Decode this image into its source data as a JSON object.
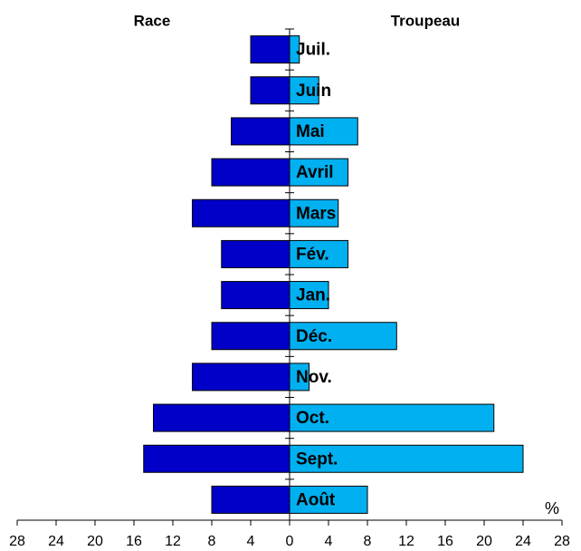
{
  "chart_data": {
    "type": "butterfly",
    "left_title": "Race",
    "right_title": "Troupeau",
    "unit_label": "%",
    "categories": [
      "Juil.",
      "Juin",
      "Mai",
      "Avril",
      "Mars",
      "Fév.",
      "Jan.",
      "Déc.",
      "Nov.",
      "Oct.",
      "Sept.",
      "Août"
    ],
    "series": [
      {
        "name": "Race",
        "color": "#0000c8",
        "values": [
          -4,
          -4,
          -6,
          -8,
          -10,
          -7,
          -7,
          -8,
          -10,
          -14,
          -15,
          -8
        ]
      },
      {
        "name": "Troupeau",
        "color": "#00b0f0",
        "values": [
          1,
          3,
          7,
          6,
          5,
          6,
          4,
          11,
          2,
          21,
          24,
          8
        ]
      }
    ],
    "xlim": [
      -28,
      28
    ],
    "xticks": [
      {
        "value": -28,
        "label": "28"
      },
      {
        "value": -24,
        "label": "24"
      },
      {
        "value": -20,
        "label": "20"
      },
      {
        "value": -16,
        "label": "16"
      },
      {
        "value": -12,
        "label": "12"
      },
      {
        "value": -8,
        "label": "8"
      },
      {
        "value": -4,
        "label": "4"
      },
      0,
      4,
      8,
      12,
      16,
      20,
      24,
      28
    ]
  }
}
